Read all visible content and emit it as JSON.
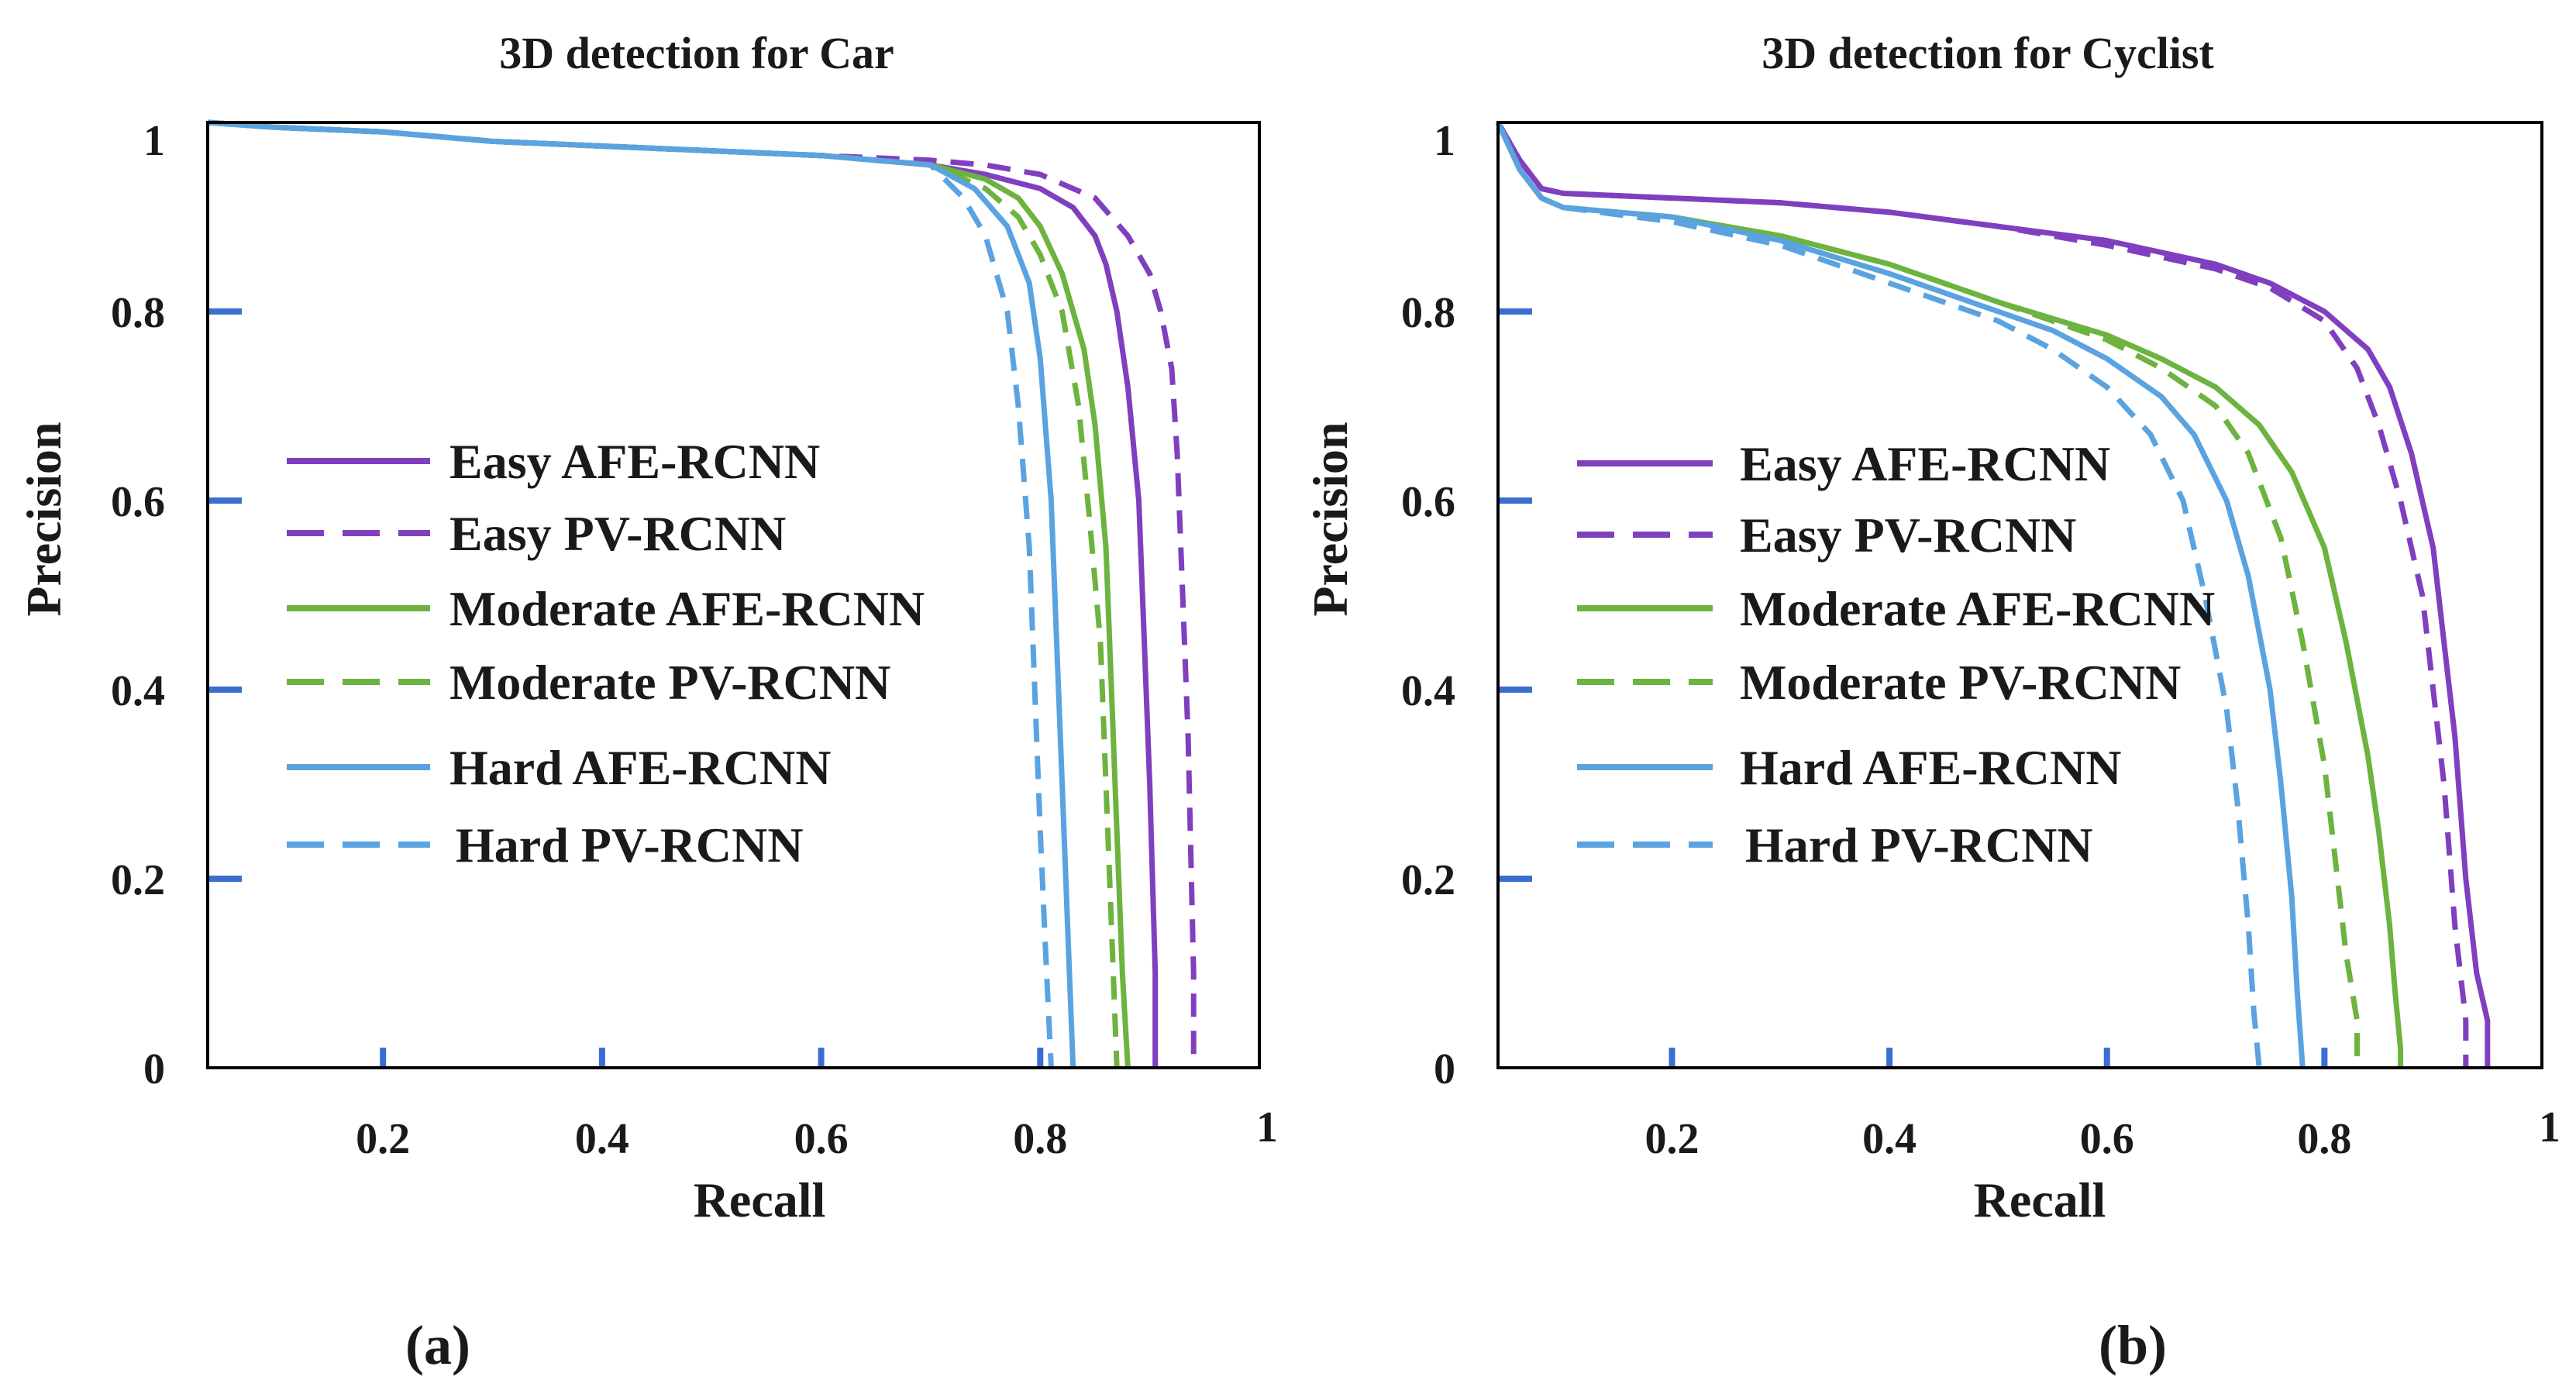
{
  "chart_data": [
    {
      "type": "line",
      "title": "3D detection for Car",
      "xlabel": "Recall",
      "ylabel": "Precision",
      "xlim": [
        0.04,
        1.0
      ],
      "ylim": [
        0,
        1.0
      ],
      "xticks": [
        0.2,
        0.4,
        0.6,
        0.8
      ],
      "x_end_label": "1",
      "yticks": [
        0,
        0.2,
        0.4,
        0.6,
        0.8
      ],
      "y_top_label": "1",
      "caption": "(a)",
      "legend_position": "center-left",
      "series": [
        {
          "name": "Easy AFE-RCNN",
          "color": "#7f3fbf",
          "dash": false,
          "x": [
            0.04,
            0.1,
            0.2,
            0.3,
            0.4,
            0.5,
            0.6,
            0.7,
            0.75,
            0.8,
            0.83,
            0.85,
            0.86,
            0.87,
            0.88,
            0.89,
            0.895,
            0.9,
            0.905,
            0.905
          ],
          "y": [
            1.0,
            0.995,
            0.99,
            0.98,
            0.975,
            0.97,
            0.965,
            0.955,
            0.945,
            0.93,
            0.91,
            0.88,
            0.85,
            0.8,
            0.72,
            0.6,
            0.45,
            0.3,
            0.1,
            0.0
          ]
        },
        {
          "name": "Easy PV-RCNN",
          "color": "#7f3fbf",
          "dash": true,
          "x": [
            0.04,
            0.1,
            0.2,
            0.3,
            0.4,
            0.5,
            0.6,
            0.7,
            0.75,
            0.8,
            0.85,
            0.88,
            0.9,
            0.91,
            0.92,
            0.925,
            0.93,
            0.935,
            0.94,
            0.94
          ],
          "y": [
            1.0,
            0.995,
            0.99,
            0.98,
            0.975,
            0.97,
            0.965,
            0.96,
            0.955,
            0.945,
            0.92,
            0.88,
            0.84,
            0.8,
            0.74,
            0.65,
            0.5,
            0.35,
            0.1,
            0.0
          ]
        },
        {
          "name": "Moderate AFE-RCNN",
          "color": "#6db33f",
          "dash": false,
          "x": [
            0.04,
            0.1,
            0.2,
            0.3,
            0.4,
            0.5,
            0.6,
            0.7,
            0.75,
            0.78,
            0.8,
            0.82,
            0.84,
            0.85,
            0.86,
            0.865,
            0.87,
            0.875,
            0.88
          ],
          "y": [
            1.0,
            0.995,
            0.99,
            0.98,
            0.975,
            0.97,
            0.965,
            0.955,
            0.94,
            0.92,
            0.89,
            0.84,
            0.76,
            0.68,
            0.55,
            0.4,
            0.25,
            0.1,
            0.0
          ]
        },
        {
          "name": "Moderate PV-RCNN",
          "color": "#6db33f",
          "dash": true,
          "x": [
            0.04,
            0.1,
            0.2,
            0.3,
            0.4,
            0.5,
            0.6,
            0.7,
            0.75,
            0.78,
            0.8,
            0.82,
            0.835,
            0.845,
            0.855,
            0.86,
            0.865,
            0.87
          ],
          "y": [
            1.0,
            0.995,
            0.99,
            0.98,
            0.975,
            0.97,
            0.965,
            0.955,
            0.93,
            0.9,
            0.86,
            0.8,
            0.7,
            0.58,
            0.45,
            0.3,
            0.15,
            0.0
          ]
        },
        {
          "name": "Hard AFE-RCNN",
          "color": "#5aa3e0",
          "dash": false,
          "x": [
            0.04,
            0.1,
            0.2,
            0.3,
            0.4,
            0.5,
            0.6,
            0.7,
            0.74,
            0.77,
            0.79,
            0.8,
            0.81,
            0.815,
            0.82,
            0.825,
            0.83
          ],
          "y": [
            1.0,
            0.995,
            0.99,
            0.98,
            0.975,
            0.97,
            0.965,
            0.955,
            0.93,
            0.89,
            0.83,
            0.75,
            0.6,
            0.45,
            0.3,
            0.15,
            0.0
          ]
        },
        {
          "name": "Hard PV-RCNN",
          "color": "#5aa3e0",
          "dash": true,
          "x": [
            0.04,
            0.1,
            0.2,
            0.3,
            0.4,
            0.5,
            0.6,
            0.7,
            0.73,
            0.75,
            0.77,
            0.78,
            0.79,
            0.795,
            0.8,
            0.805,
            0.81
          ],
          "y": [
            1.0,
            0.995,
            0.99,
            0.98,
            0.975,
            0.97,
            0.965,
            0.955,
            0.92,
            0.88,
            0.8,
            0.7,
            0.55,
            0.4,
            0.25,
            0.12,
            0.0
          ]
        }
      ]
    },
    {
      "type": "line",
      "title": "3D detection for Cyclist",
      "xlabel": "Recall",
      "ylabel": "Precision",
      "xlim": [
        0.04,
        1.0
      ],
      "ylim": [
        0,
        1.0
      ],
      "xticks": [
        0.2,
        0.4,
        0.6,
        0.8
      ],
      "x_end_label": "1",
      "yticks": [
        0,
        0.2,
        0.4,
        0.6,
        0.8
      ],
      "y_top_label": "1",
      "caption": "(b)",
      "legend_position": "center-left",
      "series": [
        {
          "name": "Easy AFE-RCNN",
          "color": "#7f3fbf",
          "dash": false,
          "x": [
            0.04,
            0.06,
            0.08,
            0.1,
            0.2,
            0.3,
            0.4,
            0.5,
            0.6,
            0.7,
            0.75,
            0.8,
            0.84,
            0.86,
            0.88,
            0.9,
            0.91,
            0.92,
            0.93,
            0.94,
            0.95,
            0.95
          ],
          "y": [
            1.0,
            0.96,
            0.93,
            0.925,
            0.92,
            0.915,
            0.905,
            0.89,
            0.875,
            0.85,
            0.83,
            0.8,
            0.76,
            0.72,
            0.65,
            0.55,
            0.45,
            0.35,
            0.2,
            0.1,
            0.05,
            0.0
          ]
        },
        {
          "name": "Easy PV-RCNN",
          "color": "#7f3fbf",
          "dash": true,
          "x": [
            0.04,
            0.06,
            0.08,
            0.1,
            0.2,
            0.3,
            0.4,
            0.5,
            0.6,
            0.7,
            0.75,
            0.8,
            0.83,
            0.85,
            0.87,
            0.89,
            0.9,
            0.91,
            0.92,
            0.93,
            0.93
          ],
          "y": [
            1.0,
            0.96,
            0.93,
            0.925,
            0.92,
            0.915,
            0.905,
            0.89,
            0.87,
            0.845,
            0.825,
            0.79,
            0.74,
            0.68,
            0.6,
            0.5,
            0.4,
            0.3,
            0.15,
            0.05,
            0.0
          ]
        },
        {
          "name": "Moderate AFE-RCNN",
          "color": "#6db33f",
          "dash": false,
          "x": [
            0.04,
            0.06,
            0.08,
            0.1,
            0.2,
            0.3,
            0.4,
            0.5,
            0.6,
            0.65,
            0.7,
            0.74,
            0.77,
            0.8,
            0.82,
            0.84,
            0.85,
            0.86,
            0.865,
            0.87,
            0.87
          ],
          "y": [
            1.0,
            0.95,
            0.92,
            0.91,
            0.9,
            0.88,
            0.85,
            0.81,
            0.775,
            0.75,
            0.72,
            0.68,
            0.63,
            0.55,
            0.45,
            0.33,
            0.25,
            0.15,
            0.08,
            0.02,
            0.0
          ]
        },
        {
          "name": "Moderate PV-RCNN",
          "color": "#6db33f",
          "dash": true,
          "x": [
            0.04,
            0.06,
            0.08,
            0.1,
            0.2,
            0.3,
            0.4,
            0.5,
            0.6,
            0.65,
            0.7,
            0.73,
            0.76,
            0.78,
            0.8,
            0.81,
            0.82,
            0.83,
            0.83
          ],
          "y": [
            1.0,
            0.95,
            0.92,
            0.91,
            0.9,
            0.88,
            0.85,
            0.81,
            0.77,
            0.74,
            0.7,
            0.65,
            0.56,
            0.45,
            0.32,
            0.22,
            0.12,
            0.05,
            0.0
          ]
        },
        {
          "name": "Hard AFE-RCNN",
          "color": "#5aa3e0",
          "dash": false,
          "x": [
            0.04,
            0.06,
            0.08,
            0.1,
            0.2,
            0.3,
            0.4,
            0.5,
            0.55,
            0.6,
            0.65,
            0.68,
            0.71,
            0.73,
            0.75,
            0.76,
            0.77,
            0.775,
            0.78
          ],
          "y": [
            1.0,
            0.95,
            0.92,
            0.91,
            0.9,
            0.875,
            0.84,
            0.8,
            0.78,
            0.75,
            0.71,
            0.67,
            0.6,
            0.52,
            0.4,
            0.3,
            0.18,
            0.08,
            0.0
          ]
        },
        {
          "name": "Hard PV-RCNN",
          "color": "#5aa3e0",
          "dash": true,
          "x": [
            0.04,
            0.06,
            0.08,
            0.1,
            0.2,
            0.3,
            0.4,
            0.5,
            0.55,
            0.6,
            0.64,
            0.67,
            0.69,
            0.71,
            0.72,
            0.73,
            0.735,
            0.74
          ],
          "y": [
            1.0,
            0.95,
            0.92,
            0.91,
            0.895,
            0.87,
            0.83,
            0.79,
            0.76,
            0.72,
            0.67,
            0.6,
            0.5,
            0.38,
            0.28,
            0.15,
            0.06,
            0.0
          ]
        }
      ]
    }
  ]
}
